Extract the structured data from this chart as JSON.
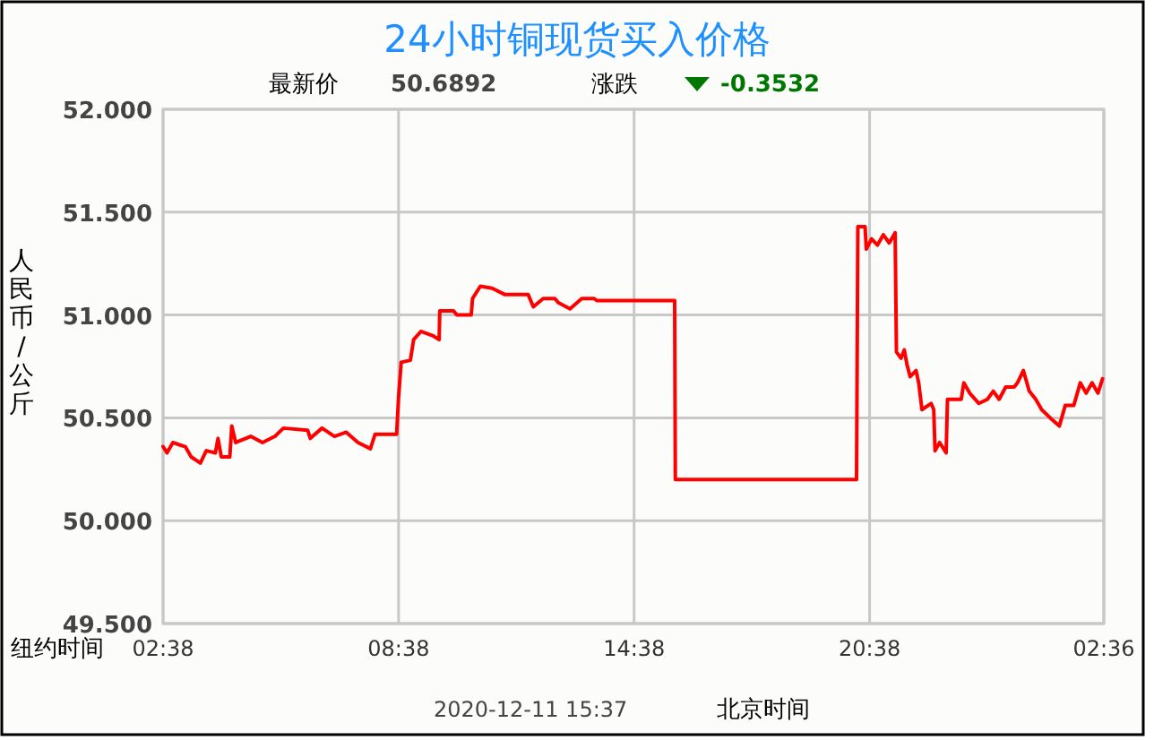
{
  "chart_data": {
    "type": "line",
    "title": "24小时铜现货买入价格",
    "xlabel": "纽约时间",
    "ylabel": "人民币/公斤",
    "annotations": [
      "最新价",
      "50.6892",
      "涨跌",
      "-0.3532",
      "2020-12-11 15:37",
      "北京时间"
    ],
    "xlim": [
      "2020-12-10T02:38",
      "2020-12-11T02:36"
    ],
    "xticks": [
      {
        "value": "2020-12-10T02:38",
        "label": "02:38"
      },
      {
        "value": "2020-12-10T08:38",
        "label": "08:38"
      },
      {
        "value": "2020-12-10T14:38",
        "label": "14:38"
      },
      {
        "value": "2020-12-10T20:38",
        "label": "20:38"
      },
      {
        "value": "2020-12-11T02:36",
        "label": "02:36"
      }
    ],
    "ylim": [
      49.5,
      52
    ],
    "yticks": [
      {
        "value": 49.5,
        "label": "49.500"
      },
      {
        "value": 50,
        "label": "50.000"
      },
      {
        "value": 50.5,
        "label": "50.500"
      },
      {
        "value": 51,
        "label": "51.000"
      },
      {
        "value": 51.5,
        "label": "51.500"
      },
      {
        "value": 52,
        "label": "52.000"
      }
    ],
    "grid": true,
    "series": [
      {
        "color": "#ff0000",
        "x": [
          "2020-12-10T02:38",
          "2020-12-10T02:44",
          "2020-12-10T02:53",
          "2020-12-10T03:02",
          "2020-12-10T03:12",
          "2020-12-10T03:21",
          "2020-12-10T03:35",
          "2020-12-10T03:44",
          "2020-12-10T03:58",
          "2020-12-10T04:02",
          "2020-12-10T04:07",
          "2020-12-10T04:20",
          "2020-12-10T04:23",
          "2020-12-10T04:29",
          "2020-12-10T04:52",
          "2020-12-10T05:10",
          "2020-12-10T05:29",
          "2020-12-10T05:42",
          "2020-12-10T06:19",
          "2020-12-10T06:23",
          "2020-12-10T06:41",
          "2020-12-10T07:00",
          "2020-12-10T07:18",
          "2020-12-10T07:36",
          "2020-12-10T07:55",
          "2020-12-10T08:02",
          "2020-12-10T08:35",
          "2020-12-10T08:38",
          "2020-12-10T08:42",
          "2020-12-10T08:56",
          "2020-12-10T09:01",
          "2020-12-10T09:12",
          "2020-12-10T09:30",
          "2020-12-10T09:40",
          "2020-12-10T09:41",
          "2020-12-10T10:02",
          "2020-12-10T10:07",
          "2020-12-10T10:29",
          "2020-12-10T10:31",
          "2020-12-10T10:43",
          "2020-12-10T11:01",
          "2020-12-10T11:20",
          "2020-12-10T11:56",
          "2020-12-10T12:04",
          "2020-12-10T12:19",
          "2020-12-10T12:37",
          "2020-12-10T12:42",
          "2020-12-10T13:00",
          "2020-12-10T13:18",
          "2020-12-10T13:32",
          "2020-12-10T13:37",
          "2020-12-10T13:41",
          "2020-12-10T15:40",
          "2020-12-10T15:41",
          "2020-12-10T20:18",
          "2020-12-10T20:20",
          "2020-12-10T20:31",
          "2020-12-10T20:33",
          "2020-12-10T20:41",
          "2020-12-10T20:50",
          "2020-12-10T20:59",
          "2020-12-10T21:08",
          "2020-12-10T21:17",
          "2020-12-10T21:19",
          "2020-12-10T21:26",
          "2020-12-10T21:31",
          "2020-12-10T21:35",
          "2020-12-10T21:40",
          "2020-12-10T21:49",
          "2020-12-10T21:53",
          "2020-12-10T21:58",
          "2020-12-10T22:12",
          "2020-12-10T22:16",
          "2020-12-10T22:18",
          "2020-12-10T22:25",
          "2020-12-10T22:35",
          "2020-12-10T22:37",
          "2020-12-10T22:58",
          "2020-12-10T23:02",
          "2020-12-10T23:11",
          "2020-12-10T23:25",
          "2020-12-10T23:38",
          "2020-12-10T23:47",
          "2020-12-10T23:56",
          "2020-12-11T00:06",
          "2020-12-11T00:19",
          "2020-12-11T00:24",
          "2020-12-11T00:33",
          "2020-12-11T00:42",
          "2020-12-11T00:52",
          "2020-12-11T01:01",
          "2020-12-11T01:14",
          "2020-12-11T01:28",
          "2020-12-11T01:37",
          "2020-12-11T01:50",
          "2020-12-11T02:00",
          "2020-12-11T02:09",
          "2020-12-11T02:18",
          "2020-12-11T02:27",
          "2020-12-11T02:34"
        ],
        "values": [
          50.36,
          50.33,
          50.38,
          50.37,
          50.36,
          50.31,
          50.28,
          50.34,
          50.33,
          50.4,
          50.31,
          50.31,
          50.46,
          50.38,
          50.41,
          50.38,
          50.41,
          50.45,
          50.44,
          50.4,
          50.45,
          50.41,
          50.43,
          50.38,
          50.35,
          50.42,
          50.42,
          50.6,
          50.77,
          50.78,
          50.88,
          50.92,
          50.9,
          50.88,
          51.02,
          51.02,
          51.0,
          51.0,
          51.08,
          51.14,
          51.13,
          51.1,
          51.1,
          51.04,
          51.08,
          51.08,
          51.06,
          51.03,
          51.08,
          51.08,
          51.08,
          51.07,
          51.07,
          50.2,
          50.2,
          51.43,
          51.43,
          51.32,
          51.37,
          51.34,
          51.39,
          51.35,
          51.4,
          50.82,
          50.79,
          50.83,
          50.76,
          50.7,
          50.73,
          50.67,
          50.54,
          50.57,
          50.54,
          50.34,
          50.38,
          50.33,
          50.59,
          50.59,
          50.67,
          50.62,
          50.57,
          50.59,
          50.63,
          50.59,
          50.65,
          50.65,
          50.67,
          50.73,
          50.63,
          50.59,
          50.54,
          50.5,
          50.46,
          50.56,
          50.56,
          50.67,
          50.62,
          50.67,
          50.62,
          50.69
        ]
      }
    ]
  }
}
